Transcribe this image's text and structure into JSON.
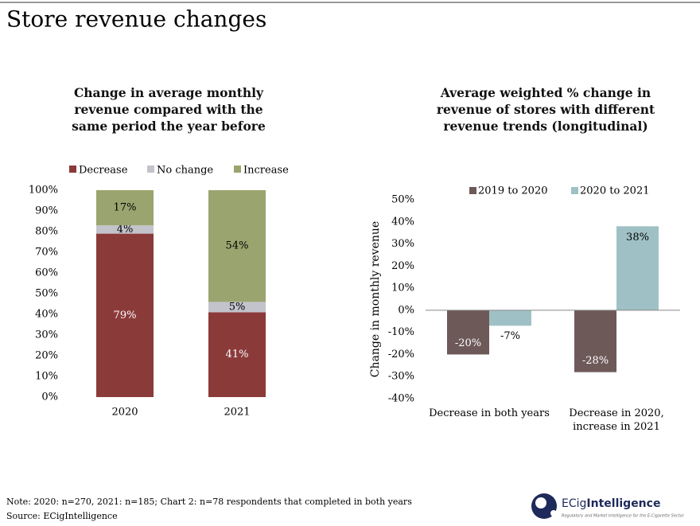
{
  "title": "Store revenue changes",
  "chart_data": [
    {
      "type": "stacked-bar",
      "title": "Change in average monthly revenue compared with the same period the year before",
      "categories": [
        "2020",
        "2021"
      ],
      "series": [
        {
          "name": "Decrease",
          "color": "#8b3a3a",
          "label_color": "#ffffff",
          "values": [
            79,
            41
          ],
          "value_labels": [
            "79%",
            "41%"
          ]
        },
        {
          "name": "No change",
          "color": "#c3c3cb",
          "label_color": "#000000",
          "values": [
            4,
            5
          ],
          "value_labels": [
            "4%",
            "5%"
          ]
        },
        {
          "name": "Increase",
          "color": "#9aa46e",
          "label_color": "#000000",
          "values": [
            17,
            54
          ],
          "value_labels": [
            "17%",
            "54%"
          ]
        }
      ],
      "ylim": [
        0,
        100
      ],
      "yticks": [
        {
          "value": 0,
          "label": "0%"
        },
        {
          "value": 10,
          "label": "10%"
        },
        {
          "value": 20,
          "label": "20%"
        },
        {
          "value": 30,
          "label": "30%"
        },
        {
          "value": 40,
          "label": "40%"
        },
        {
          "value": 50,
          "label": "50%"
        },
        {
          "value": 60,
          "label": "60%"
        },
        {
          "value": 70,
          "label": "70%"
        },
        {
          "value": 80,
          "label": "80%"
        },
        {
          "value": 90,
          "label": "90%"
        },
        {
          "value": 100,
          "label": "100%"
        }
      ]
    },
    {
      "type": "grouped-bar",
      "title": "Average weighted % change in revenue of stores with different revenue trends (longitudinal)",
      "y_label": "Change in monthly revenue",
      "categories": [
        "Decrease in both years",
        "Decrease in 2020, increase in 2021"
      ],
      "series": [
        {
          "name": "2019 to 2020",
          "color": "#6e5959",
          "label_color": "#ffffff",
          "values": [
            -20,
            -28
          ],
          "value_labels": [
            "-20%",
            "-28%"
          ]
        },
        {
          "name": "2020 to 2021",
          "color": "#9fc1c5",
          "label_color": "#000000",
          "values": [
            -7,
            38
          ],
          "value_labels": [
            "-7%",
            "38%"
          ]
        }
      ],
      "ylim": [
        -40,
        50
      ],
      "yticks": [
        {
          "value": -40,
          "label": "-40%"
        },
        {
          "value": -30,
          "label": "-30%"
        },
        {
          "value": -20,
          "label": "-20%"
        },
        {
          "value": -10,
          "label": "-10%"
        },
        {
          "value": 0,
          "label": "0%"
        },
        {
          "value": 10,
          "label": "10%"
        },
        {
          "value": 20,
          "label": "20%"
        },
        {
          "value": 30,
          "label": "30%"
        },
        {
          "value": 40,
          "label": "40%"
        },
        {
          "value": 50,
          "label": "50%"
        }
      ]
    }
  ],
  "note": "Note: 2020: n=270, 2021: n=185; Chart 2: n=78 respondents that completed in both years",
  "source": "Source: ECigIntelligence",
  "logo": {
    "name_light": "ECig",
    "name_bold": "Intelligence",
    "tagline": "Regulatory and Market Intelligence for the E-Cigarette Sector"
  }
}
